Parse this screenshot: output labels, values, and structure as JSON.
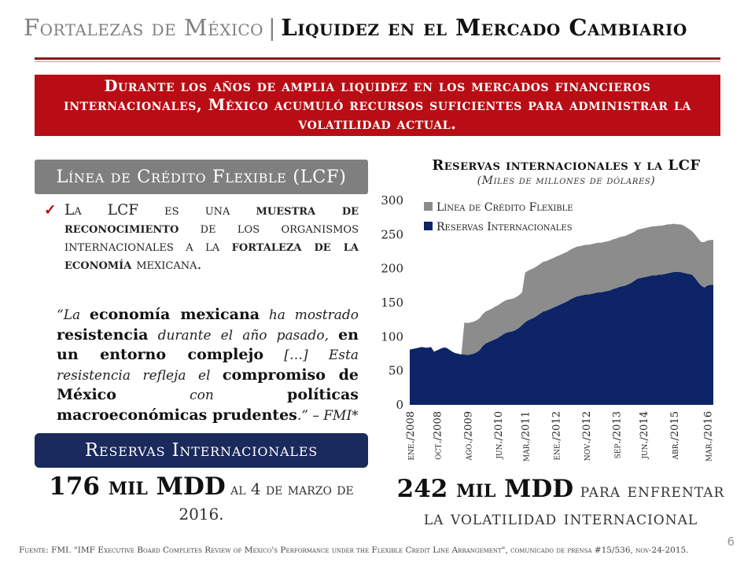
{
  "title": {
    "left": "Fortalezas de México",
    "separator": "|",
    "right": "Liquidez en el Mercado Cambiario"
  },
  "banner": {
    "text": "Durante los años de amplia liquidez en los mercados financieros internacionales, México acumuló recursos suficientes para administrar la volatilidad actual."
  },
  "lcf_section": {
    "header": "Línea de Crédito Flexible (LCF)",
    "bullet_icon": "check-icon",
    "bullet": {
      "t1": "La LCF es una ",
      "b1": "muestra de reconocimiento",
      "t2": " de los organismos internacionales a la ",
      "b2": "fortaleza de la economía",
      "t3": " mexicana."
    },
    "quote": {
      "t1": "“La ",
      "b1": "economía mexicana",
      "t2": " ha mostrado ",
      "b2": "resistencia",
      "t3": " durante el año pasado, ",
      "b3": "en un entorno complejo",
      "t4": " […] Esta resistencia refleja el ",
      "b4": "compromiso de México",
      "t5": " con ",
      "b5": "políticas macroeconómicas prudentes",
      "t6": ".” – FMI*"
    }
  },
  "reserves_section": {
    "header": "Reservas Internacionales",
    "value": "176 mil MDD",
    "caption": " al 4 de marzo de 2016."
  },
  "lcf_total": {
    "value": "242 mil MDD",
    "caption1": " para enfrentar",
    "caption2": "la volatilidad internacional"
  },
  "footnote": "Fuente: FMI. \"IMF Executive Board Completes Review of Mexico's Performance under the Flexible Credit Line Arrangement\", comunicado de prensa #15/536, nov-24-2015.",
  "page_number": "6",
  "chart_data": {
    "type": "area",
    "title": "Reservas internacionales y la LCF",
    "subtitle": "(Miles de millones de dólares)",
    "ylim": [
      0,
      300
    ],
    "yticks": [
      0,
      50,
      100,
      150,
      200,
      250,
      300
    ],
    "grid": false,
    "legend_position": "top-left",
    "x_tick_labels": [
      "ene./2008",
      "oct./2008",
      "ago./2009",
      "jun./2010",
      "mar./2011",
      "ene./2012",
      "nov./2012",
      "sep./2013",
      "jun./2014",
      "abr./2015",
      "mar./2016"
    ],
    "x_tick_indices": [
      0,
      9,
      19,
      29,
      38,
      48,
      58,
      68,
      77,
      87,
      98
    ],
    "series": [
      {
        "name": "Reservas Internacionales",
        "color": "#0d2466",
        "values": [
          81,
          82,
          83,
          84,
          85,
          84,
          84,
          85,
          78,
          80,
          82,
          84,
          84,
          81,
          78,
          76,
          75,
          74,
          74,
          73,
          74,
          75,
          77,
          80,
          86,
          90,
          92,
          94,
          96,
          98,
          101,
          104,
          106,
          107,
          108,
          110,
          113,
          117,
          121,
          124,
          126,
          128,
          131,
          134,
          137,
          138,
          140,
          142,
          144,
          146,
          148,
          150,
          152,
          155,
          157,
          159,
          160,
          161,
          162,
          162,
          163,
          164,
          165,
          165,
          166,
          167,
          168,
          170,
          171,
          173,
          174,
          175,
          177,
          179,
          182,
          185,
          186,
          187,
          188,
          189,
          190,
          190,
          191,
          191,
          192,
          193,
          194,
          195,
          195,
          195,
          194,
          193,
          192,
          191,
          186,
          180,
          175,
          172,
          175,
          176,
          176
        ]
      },
      {
        "name": "Línea de Crédito Flexible",
        "color": "#8c8c8c",
        "values": [
          0,
          0,
          0,
          0,
          0,
          0,
          0,
          0,
          0,
          0,
          0,
          0,
          0,
          0,
          0,
          0,
          0,
          0,
          47,
          47,
          47,
          47,
          47,
          47,
          47,
          47,
          47,
          47,
          48,
          48,
          48,
          48,
          48,
          48,
          48,
          48,
          48,
          48,
          73,
          73,
          73,
          73,
          73,
          73,
          73,
          73,
          73,
          73,
          73,
          73,
          73,
          73,
          73,
          73,
          73,
          73,
          73,
          73,
          73,
          73,
          73,
          73,
          73,
          73,
          73,
          73,
          73,
          73,
          73,
          73,
          73,
          73,
          73,
          73,
          72,
          72,
          72,
          72,
          72,
          72,
          72,
          72,
          72,
          72,
          72,
          72,
          71,
          71,
          70,
          70,
          70,
          68,
          66,
          64,
          64,
          64,
          64,
          67,
          66,
          66,
          66
        ]
      }
    ]
  }
}
